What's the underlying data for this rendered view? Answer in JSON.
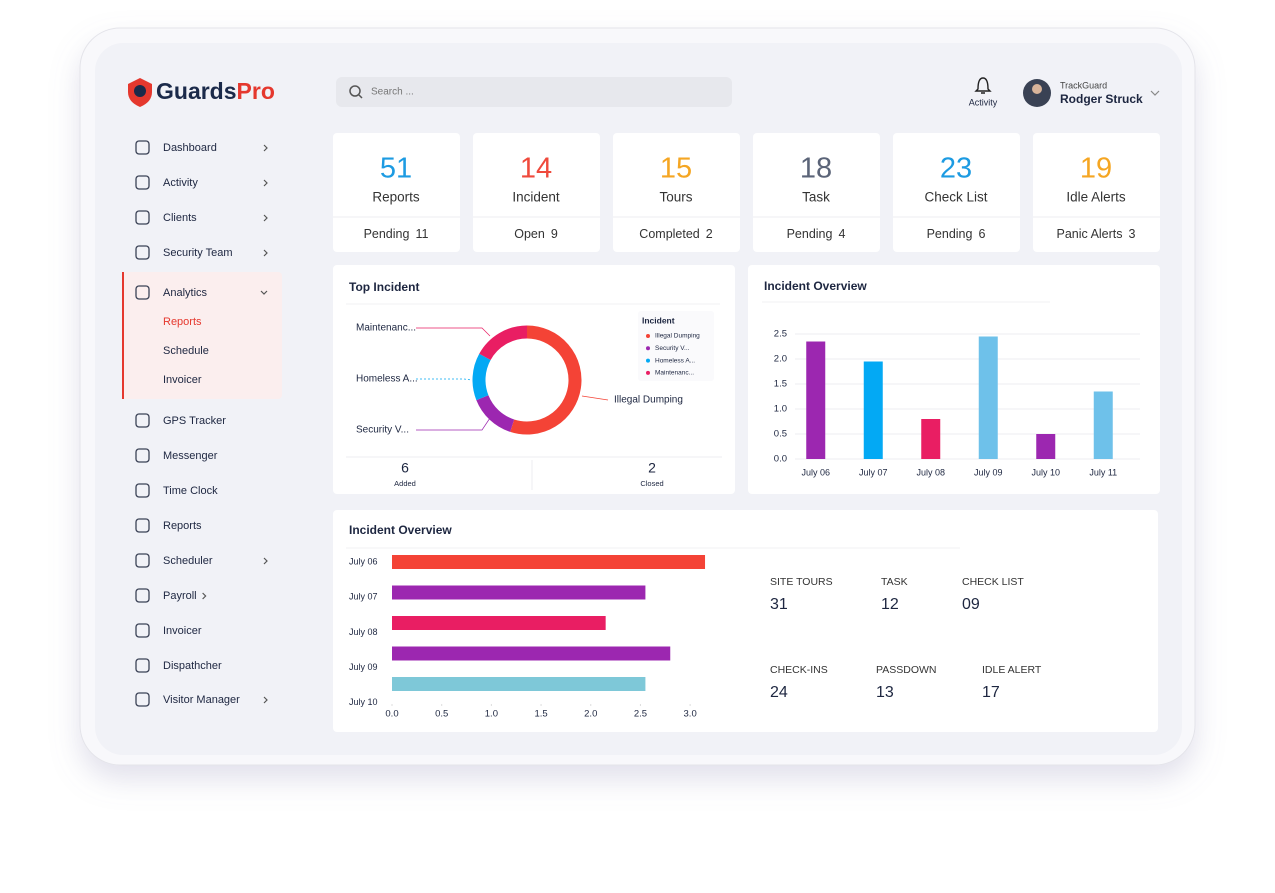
{
  "header": {
    "logo": {
      "main": "Guards",
      "accent": "Pro"
    },
    "search_placeholder": "Search ...",
    "notifications": "Activity",
    "user": {
      "org": "TrackGuard",
      "name": "Rodger Struck"
    }
  },
  "sidebar": {
    "items": [
      {
        "label": "Dashboard",
        "chevron": "right"
      },
      {
        "label": "Activity",
        "chevron": "right"
      },
      {
        "label": "Clients",
        "chevron": "right"
      },
      {
        "label": "Security Team",
        "chevron": "right"
      },
      {
        "label": "Analytics",
        "chevron": "down",
        "children": [
          "Reports",
          "Schedule",
          "Invoicer"
        ]
      },
      {
        "label": "GPS Tracker"
      },
      {
        "label": "Messenger"
      },
      {
        "label": "Time Clock"
      },
      {
        "label": "Reports"
      },
      {
        "label": "Scheduler",
        "chevron": "right"
      },
      {
        "label": "Payroll",
        "chevron": "inline"
      },
      {
        "label": "Invoicer"
      },
      {
        "label": "Dispathcher"
      },
      {
        "label": "Visitor Manager",
        "chevron": "right"
      }
    ]
  },
  "stats": [
    {
      "value": 51,
      "label": "Reports",
      "color": "#1d9be2",
      "sub_label": "Pending",
      "sub_value": 11
    },
    {
      "value": 14,
      "label": "Incident",
      "color": "#ef4a3c",
      "sub_label": "Open",
      "sub_value": 9
    },
    {
      "value": 15,
      "label": "Tours",
      "color": "#f5a623",
      "sub_label": "Completed",
      "sub_value": 2
    },
    {
      "value": 18,
      "label": "Task",
      "color": "#5b6478",
      "sub_label": "Pending",
      "sub_value": 4
    },
    {
      "value": 23,
      "label": "Check List",
      "color": "#1d9be2",
      "sub_label": "Pending",
      "sub_value": 6
    },
    {
      "value": 19,
      "label": "Idle Alerts",
      "color": "#f5a623",
      "sub_label": "Panic Alerts",
      "sub_value": 3
    }
  ],
  "chart_data": [
    {
      "type": "donut",
      "title": "Top Incident",
      "legend_title": "Incident",
      "categories": [
        "Illegal Dumping",
        "Security V...",
        "Homeless A...",
        "Maintenanc..."
      ],
      "values": [
        55,
        14,
        14,
        17
      ],
      "colors": [
        "#f44336",
        "#9c27b0",
        "#03a9f4",
        "#e91e63"
      ],
      "footer": [
        {
          "value": 6,
          "label": "Added"
        },
        {
          "value": 2,
          "label": "Closed"
        }
      ]
    },
    {
      "type": "bar",
      "title": "Incident Overview",
      "categories": [
        "July 06",
        "July 07",
        "July 08",
        "July 09",
        "July 10",
        "July 11"
      ],
      "values": [
        2.35,
        1.95,
        0.8,
        2.45,
        0.5,
        1.35
      ],
      "colors": [
        "#9c27b0",
        "#03a9f4",
        "#e91e63",
        "#6ec1ea",
        "#9c27b0",
        "#6ec1ea"
      ],
      "ylim": [
        0,
        2.5
      ],
      "yticks": [
        {
          "value": 0,
          "label": "0.0"
        },
        0.5,
        {
          "value": 1,
          "label": "1.0"
        },
        1.5,
        {
          "value": 2,
          "label": "2.0"
        },
        2.5
      ],
      "grid": true
    },
    {
      "type": "hbar",
      "title": "Incident Overview",
      "categories": [
        "July 06",
        "July 07",
        "July 08",
        "July 09",
        "July 10"
      ],
      "values": [
        3.15,
        2.55,
        2.15,
        2.8,
        2.55
      ],
      "colors": [
        "#f44336",
        "#9c27b0",
        "#e91e63",
        "#9c27b0",
        "#7ec8d8"
      ],
      "xlim": [
        0,
        3.2
      ],
      "xticks": [
        {
          "value": 0,
          "label": "0.0"
        },
        0.5,
        {
          "value": 1,
          "label": "1.0"
        },
        1.5,
        {
          "value": 2,
          "label": "2.0"
        },
        2.5,
        {
          "value": 3,
          "label": "3.0"
        }
      ]
    }
  ],
  "summary": [
    {
      "label": "SITE TOURS",
      "value": 31
    },
    {
      "label": "TASK",
      "value": 12
    },
    {
      "label": "CHECK LIST",
      "value": "09"
    },
    {
      "label": "CHECK-INS",
      "value": 24
    },
    {
      "label": "PASSDOWN",
      "value": 13
    },
    {
      "label": "IDLE ALERT",
      "value": 17
    }
  ]
}
